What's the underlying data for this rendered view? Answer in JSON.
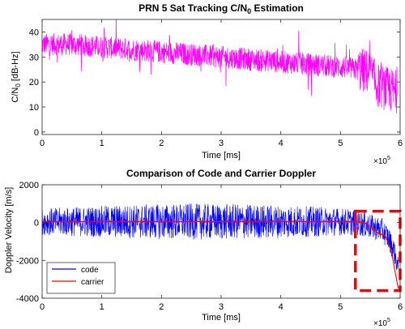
{
  "chart_data": [
    {
      "type": "line",
      "title": "PRN 5 Sat Tracking C/N",
      "title_sub": "0",
      "title_suffix": " Estimation",
      "xlabel": "Time [ms]",
      "ylabel": "C/N",
      "ylabel_sub": "0",
      "ylabel_suffix": " [dB-Hz]",
      "x_exponent": "×10",
      "x_exponent_power": "5",
      "xlim": [
        0,
        6
      ],
      "ylim": [
        -1,
        45
      ],
      "xticks": [
        "0",
        "1",
        "2",
        "3",
        "4",
        "5",
        "6"
      ],
      "yticks": [
        "0",
        "10",
        "20",
        "30",
        "40"
      ],
      "grid": false,
      "series": [
        {
          "color": "#ff00ff",
          "x": [
            0,
            0.5,
            1,
            1.5,
            2,
            2.5,
            3,
            3.5,
            4,
            4.5,
            5,
            5.3,
            5.5,
            5.6,
            5.8,
            5.95
          ],
          "y": [
            35,
            35,
            34,
            33,
            32,
            31,
            30,
            29,
            28,
            27,
            26,
            25,
            24,
            19,
            17,
            16
          ]
        }
      ]
    },
    {
      "type": "line",
      "title": "Comparison of Code and Carrier Doppler",
      "xlabel": "Time [ms]",
      "ylabel": "Doppler Velocity [m/s]",
      "x_exponent": "×10",
      "x_exponent_power": "5",
      "xlim": [
        0,
        6
      ],
      "ylim": [
        -4000,
        2000
      ],
      "xticks": [
        "0",
        "1",
        "2",
        "3",
        "4",
        "5",
        "6"
      ],
      "yticks": [
        "-4000",
        "-2000",
        "0",
        "2000"
      ],
      "grid": false,
      "legend_position": "bottom-left",
      "series": [
        {
          "name": "code",
          "color": "#0000ff",
          "x": [
            0,
            1,
            2,
            3,
            4,
            5,
            5.3,
            5.5,
            5.7,
            5.8,
            5.9,
            5.97
          ],
          "y": [
            50,
            50,
            50,
            50,
            50,
            50,
            0,
            -200,
            -400,
            -800,
            -1500,
            -2500
          ]
        },
        {
          "name": "carrier",
          "color": "#ff0000",
          "x": [
            0,
            1,
            2,
            3,
            4,
            5,
            5.3,
            5.45,
            5.6,
            5.75,
            5.85,
            5.97
          ],
          "y": [
            50,
            50,
            50,
            50,
            50,
            50,
            40,
            -50,
            -500,
            -700,
            -1500,
            -3500
          ]
        }
      ],
      "highlight_box": {
        "x": [
          5.25,
          6.0
        ],
        "y": [
          -3600,
          600
        ],
        "color": "#ff0000"
      }
    }
  ]
}
